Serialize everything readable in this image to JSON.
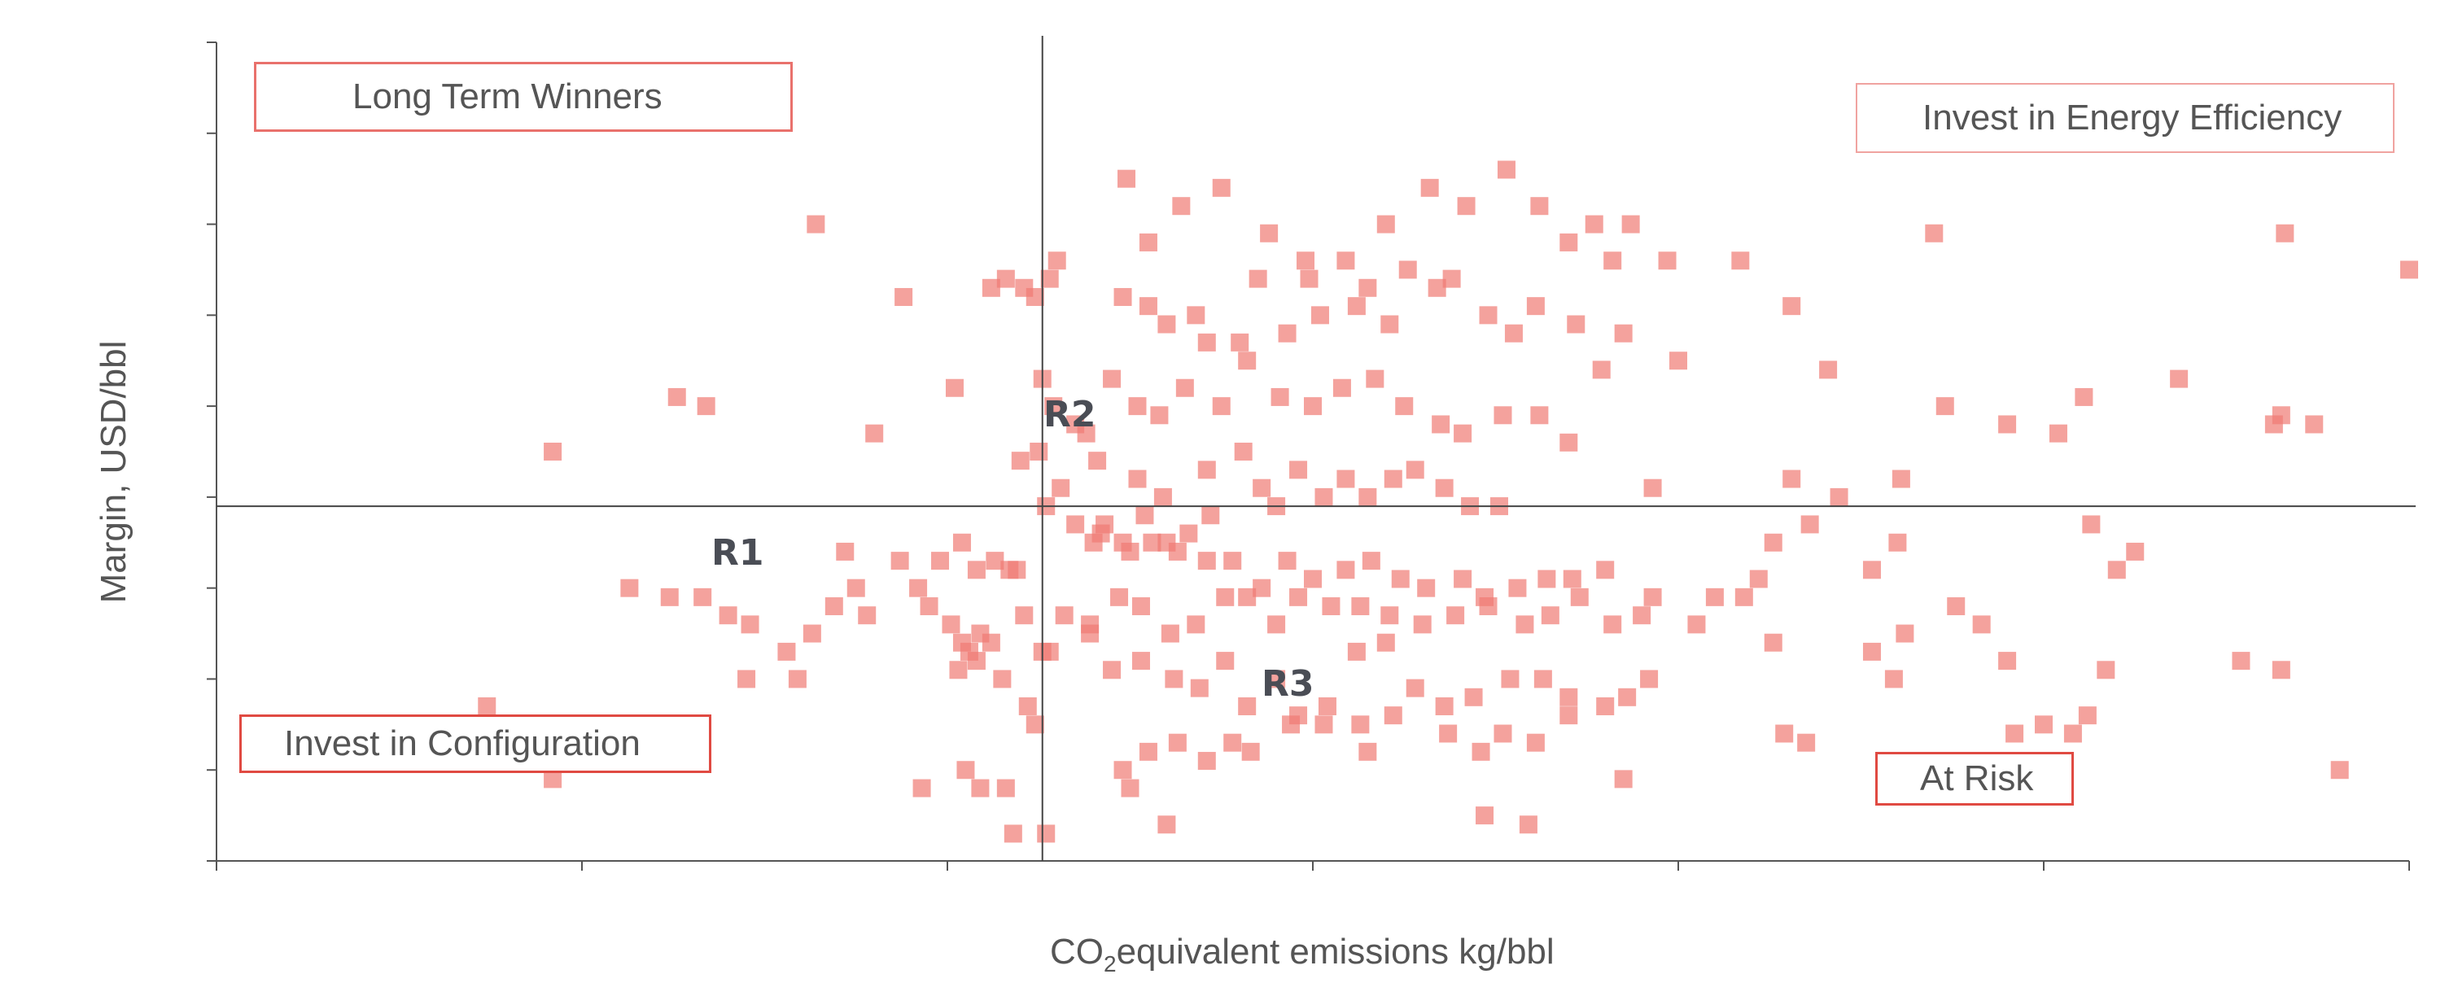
{
  "chart_data": {
    "type": "scatter",
    "title": "",
    "xlabel_main": "CO",
    "xlabel_sub": "2",
    "xlabel_rest": "equivalent emissions kg/bbl",
    "ylabel": "Margin, USD/bbl",
    "xlim": [
      0,
      60
    ],
    "ylim": [
      0,
      9
    ],
    "x_ticks": [
      0,
      10,
      20,
      30,
      40,
      50,
      60
    ],
    "y_ticks": [
      0,
      1,
      2,
      3,
      4,
      5,
      6,
      7,
      8,
      9
    ],
    "crosshair": {
      "x": 22.6,
      "y": 3.9
    },
    "tick_labels_shown": false,
    "grid": false,
    "marker": "square",
    "color": "#f07b74",
    "quadrant_labels": {
      "top_left": "Long Term Winners",
      "top_right": "Invest in Energy Efficiency",
      "bottom_left": "Invest in Configuration",
      "bottom_right": "At Risk"
    },
    "region_labels": [
      "R1",
      "R2",
      "R3"
    ],
    "points": [
      [
        7.4,
        1.7
      ],
      [
        9.2,
        4.5
      ],
      [
        9.2,
        0.9
      ],
      [
        11.3,
        3.0
      ],
      [
        12.6,
        5.1
      ],
      [
        13.4,
        5.0
      ],
      [
        16.4,
        7.0
      ],
      [
        18.0,
        4.7
      ],
      [
        14.0,
        2.7
      ],
      [
        14.6,
        2.6
      ],
      [
        13.3,
        2.9
      ],
      [
        12.4,
        2.9
      ],
      [
        14.5,
        2.0
      ],
      [
        15.6,
        2.3
      ],
      [
        15.9,
        2.0
      ],
      [
        16.3,
        2.5
      ],
      [
        16.9,
        2.8
      ],
      [
        17.2,
        3.4
      ],
      [
        17.5,
        3.0
      ],
      [
        17.8,
        2.7
      ],
      [
        18.7,
        3.3
      ],
      [
        19.2,
        3.0
      ],
      [
        19.8,
        3.3
      ],
      [
        20.4,
        3.5
      ],
      [
        20.8,
        3.2
      ],
      [
        21.3,
        3.3
      ],
      [
        21.7,
        3.2
      ],
      [
        21.9,
        3.2
      ],
      [
        19.5,
        2.8
      ],
      [
        20.1,
        2.6
      ],
      [
        20.4,
        2.4
      ],
      [
        20.6,
        2.3
      ],
      [
        20.9,
        2.5
      ],
      [
        21.2,
        2.4
      ],
      [
        20.3,
        2.1
      ],
      [
        20.8,
        2.2
      ],
      [
        22.1,
        2.7
      ],
      [
        22.6,
        2.3
      ],
      [
        23.2,
        2.7
      ],
      [
        23.9,
        2.5
      ],
      [
        19.3,
        0.8
      ],
      [
        20.5,
        1.0
      ],
      [
        20.9,
        0.8
      ],
      [
        21.6,
        0.8
      ],
      [
        21.8,
        0.3
      ],
      [
        22.7,
        0.3
      ],
      [
        22.2,
        1.7
      ],
      [
        21.5,
        2.0
      ],
      [
        22.8,
        2.3
      ],
      [
        22.4,
        1.5
      ],
      [
        18.8,
        6.2
      ],
      [
        20.2,
        5.2
      ],
      [
        21.2,
        6.3
      ],
      [
        21.6,
        6.4
      ],
      [
        22.1,
        6.3
      ],
      [
        22.4,
        6.2
      ],
      [
        22.8,
        6.4
      ],
      [
        23.0,
        6.6
      ],
      [
        22.6,
        5.3
      ],
      [
        22.9,
        5.0
      ],
      [
        23.5,
        4.8
      ],
      [
        22.0,
        4.4
      ],
      [
        22.5,
        4.5
      ],
      [
        23.8,
        4.7
      ],
      [
        24.1,
        4.4
      ],
      [
        22.7,
        3.9
      ],
      [
        23.1,
        4.1
      ],
      [
        23.5,
        3.7
      ],
      [
        24.0,
        3.5
      ],
      [
        24.3,
        3.7
      ],
      [
        24.8,
        3.5
      ],
      [
        25.4,
        3.8
      ],
      [
        26.0,
        3.5
      ],
      [
        26.6,
        3.6
      ],
      [
        27.2,
        3.8
      ],
      [
        25.2,
        4.2
      ],
      [
        25.9,
        4.0
      ],
      [
        27.1,
        4.3
      ],
      [
        28.1,
        4.5
      ],
      [
        28.6,
        4.1
      ],
      [
        29.0,
        3.9
      ],
      [
        29.6,
        4.3
      ],
      [
        30.3,
        4.0
      ],
      [
        30.9,
        4.2
      ],
      [
        31.5,
        4.0
      ],
      [
        32.2,
        4.2
      ],
      [
        32.8,
        4.3
      ],
      [
        33.6,
        4.1
      ],
      [
        34.3,
        3.9
      ],
      [
        35.1,
        3.9
      ],
      [
        24.8,
        6.2
      ],
      [
        26.0,
        5.9
      ],
      [
        27.1,
        5.7
      ],
      [
        28.0,
        5.7
      ],
      [
        29.3,
        5.8
      ],
      [
        30.2,
        6.0
      ],
      [
        31.2,
        6.1
      ],
      [
        32.1,
        5.9
      ],
      [
        33.4,
        6.3
      ],
      [
        34.8,
        6.0
      ],
      [
        25.5,
        6.1
      ],
      [
        26.8,
        6.0
      ],
      [
        28.5,
        6.4
      ],
      [
        29.9,
        6.4
      ],
      [
        31.5,
        6.3
      ],
      [
        32.6,
        6.5
      ],
      [
        33.8,
        6.4
      ],
      [
        35.5,
        5.8
      ],
      [
        36.1,
        6.1
      ],
      [
        37.2,
        5.9
      ],
      [
        24.5,
        5.3
      ],
      [
        25.2,
        5.0
      ],
      [
        25.8,
        4.9
      ],
      [
        26.5,
        5.2
      ],
      [
        27.5,
        5.0
      ],
      [
        28.2,
        5.5
      ],
      [
        29.1,
        5.1
      ],
      [
        30.0,
        5.0
      ],
      [
        30.8,
        5.2
      ],
      [
        31.7,
        5.3
      ],
      [
        32.5,
        5.0
      ],
      [
        33.5,
        4.8
      ],
      [
        34.1,
        4.7
      ],
      [
        35.2,
        4.9
      ],
      [
        36.2,
        4.9
      ],
      [
        37.0,
        4.6
      ],
      [
        37.9,
        5.4
      ],
      [
        38.5,
        5.8
      ],
      [
        40.0,
        5.5
      ],
      [
        39.3,
        4.1
      ],
      [
        24.9,
        7.5
      ],
      [
        25.5,
        6.8
      ],
      [
        26.4,
        7.2
      ],
      [
        27.5,
        7.4
      ],
      [
        28.8,
        6.9
      ],
      [
        29.8,
        6.6
      ],
      [
        30.9,
        6.6
      ],
      [
        32.0,
        7.0
      ],
      [
        33.2,
        7.4
      ],
      [
        34.2,
        7.2
      ],
      [
        35.3,
        7.6
      ],
      [
        36.2,
        7.2
      ],
      [
        37.0,
        6.8
      ],
      [
        37.7,
        7.0
      ],
      [
        38.2,
        6.6
      ],
      [
        38.7,
        7.0
      ],
      [
        39.7,
        6.6
      ],
      [
        41.7,
        6.6
      ],
      [
        43.1,
        6.1
      ],
      [
        44.1,
        5.4
      ],
      [
        24.2,
        3.6
      ],
      [
        25.0,
        3.4
      ],
      [
        25.6,
        3.5
      ],
      [
        26.3,
        3.4
      ],
      [
        27.1,
        3.3
      ],
      [
        27.8,
        3.3
      ],
      [
        28.6,
        3.0
      ],
      [
        29.3,
        3.3
      ],
      [
        30.0,
        3.1
      ],
      [
        30.9,
        3.2
      ],
      [
        31.6,
        3.3
      ],
      [
        32.4,
        3.1
      ],
      [
        33.1,
        3.0
      ],
      [
        34.1,
        3.1
      ],
      [
        34.7,
        2.9
      ],
      [
        35.6,
        3.0
      ],
      [
        36.4,
        3.1
      ],
      [
        37.1,
        3.1
      ],
      [
        38.0,
        3.2
      ],
      [
        39.3,
        2.9
      ],
      [
        23.9,
        2.6
      ],
      [
        24.7,
        2.9
      ],
      [
        25.3,
        2.8
      ],
      [
        26.1,
        2.5
      ],
      [
        26.8,
        2.6
      ],
      [
        27.6,
        2.9
      ],
      [
        28.2,
        2.9
      ],
      [
        29.0,
        2.6
      ],
      [
        29.6,
        2.9
      ],
      [
        30.5,
        2.8
      ],
      [
        31.3,
        2.8
      ],
      [
        32.1,
        2.7
      ],
      [
        33.0,
        2.6
      ],
      [
        33.9,
        2.7
      ],
      [
        34.8,
        2.8
      ],
      [
        35.8,
        2.6
      ],
      [
        36.5,
        2.7
      ],
      [
        37.3,
        2.9
      ],
      [
        38.2,
        2.6
      ],
      [
        39.0,
        2.7
      ],
      [
        24.5,
        2.1
      ],
      [
        25.3,
        2.2
      ],
      [
        26.2,
        2.0
      ],
      [
        26.9,
        1.9
      ],
      [
        27.6,
        2.2
      ],
      [
        28.2,
        1.7
      ],
      [
        29.0,
        2.0
      ],
      [
        29.6,
        1.6
      ],
      [
        30.4,
        1.7
      ],
      [
        31.2,
        2.3
      ],
      [
        32.0,
        2.4
      ],
      [
        32.8,
        1.9
      ],
      [
        33.6,
        1.7
      ],
      [
        34.4,
        1.8
      ],
      [
        35.4,
        2.0
      ],
      [
        36.3,
        2.0
      ],
      [
        37.0,
        1.6
      ],
      [
        38.0,
        1.7
      ],
      [
        39.2,
        2.0
      ],
      [
        40.5,
        2.6
      ],
      [
        24.8,
        1.0
      ],
      [
        25.5,
        1.2
      ],
      [
        26.3,
        1.3
      ],
      [
        27.1,
        1.1
      ],
      [
        27.8,
        1.3
      ],
      [
        28.3,
        1.2
      ],
      [
        29.4,
        1.5
      ],
      [
        30.3,
        1.5
      ],
      [
        31.3,
        1.5
      ],
      [
        32.2,
        1.6
      ],
      [
        33.7,
        1.4
      ],
      [
        34.6,
        1.2
      ],
      [
        35.2,
        1.4
      ],
      [
        36.1,
        1.3
      ],
      [
        37.0,
        1.8
      ],
      [
        38.6,
        1.8
      ],
      [
        25.0,
        0.8
      ],
      [
        26.0,
        0.4
      ],
      [
        31.5,
        1.2
      ],
      [
        34.7,
        0.5
      ],
      [
        35.9,
        0.4
      ],
      [
        38.5,
        0.9
      ],
      [
        41.0,
        2.9
      ],
      [
        42.2,
        3.1
      ],
      [
        42.6,
        3.5
      ],
      [
        43.6,
        3.7
      ],
      [
        43.1,
        4.2
      ],
      [
        44.4,
        4.0
      ],
      [
        45.3,
        3.2
      ],
      [
        46.0,
        3.5
      ],
      [
        41.8,
        2.9
      ],
      [
        42.6,
        2.4
      ],
      [
        42.9,
        1.4
      ],
      [
        43.5,
        1.3
      ],
      [
        45.3,
        2.3
      ],
      [
        45.9,
        2.0
      ],
      [
        46.2,
        2.5
      ],
      [
        47.6,
        2.8
      ],
      [
        48.3,
        2.6
      ],
      [
        49.0,
        2.2
      ],
      [
        47.0,
        6.9
      ],
      [
        49.0,
        4.8
      ],
      [
        46.1,
        4.2
      ],
      [
        47.3,
        5.0
      ],
      [
        50.4,
        4.7
      ],
      [
        51.1,
        5.1
      ],
      [
        51.7,
        2.1
      ],
      [
        51.2,
        1.6
      ],
      [
        50.8,
        1.4
      ],
      [
        50.0,
        1.5
      ],
      [
        49.2,
        1.4
      ],
      [
        49.5,
        1.0
      ],
      [
        52.0,
        3.2
      ],
      [
        51.3,
        3.7
      ],
      [
        52.5,
        3.4
      ],
      [
        53.7,
        5.3
      ],
      [
        56.3,
        4.8
      ],
      [
        56.5,
        4.9
      ],
      [
        57.4,
        4.8
      ],
      [
        56.6,
        6.9
      ],
      [
        60.0,
        6.5
      ],
      [
        56.5,
        2.1
      ],
      [
        58.1,
        1.0
      ],
      [
        55.4,
        2.2
      ]
    ]
  }
}
